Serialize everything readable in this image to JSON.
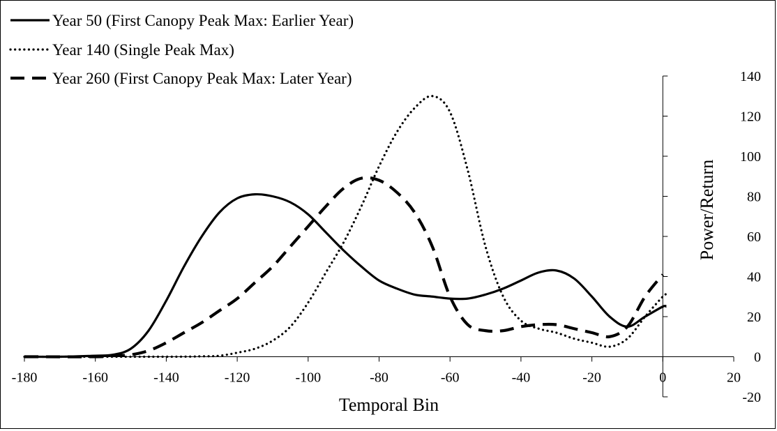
{
  "chart_data": {
    "type": "line",
    "title": "",
    "xlabel": "Temporal Bin",
    "ylabel": "Power/Return",
    "xlim": [
      -180,
      20
    ],
    "ylim": [
      -20,
      140
    ],
    "xticks": [
      -180,
      -160,
      -140,
      -120,
      -100,
      -80,
      -60,
      -40,
      -20,
      0,
      20
    ],
    "yticks": [
      -20,
      0,
      20,
      40,
      60,
      80,
      100,
      120,
      140
    ],
    "legend_position": "top-left",
    "grid": false,
    "series": [
      {
        "name": "Year 50 (First Canopy Peak Max: Earlier Year)",
        "style": "solid",
        "color": "#000000",
        "x": [
          -180,
          -170,
          -160,
          -155,
          -150,
          -145,
          -140,
          -135,
          -130,
          -125,
          -120,
          -115,
          -110,
          -105,
          -100,
          -95,
          -90,
          -85,
          -80,
          -75,
          -70,
          -65,
          -60,
          -55,
          -50,
          -45,
          -40,
          -35,
          -30,
          -25,
          -20,
          -15,
          -10,
          -5,
          0,
          1
        ],
        "y": [
          0,
          0,
          0.5,
          1,
          4,
          13,
          28,
          45,
          60,
          72,
          79,
          81,
          80,
          77,
          71,
          62,
          53,
          45,
          38,
          34,
          31,
          30,
          29,
          29,
          31,
          34,
          38,
          42,
          43,
          39,
          30,
          20,
          15,
          20,
          25,
          25
        ]
      },
      {
        "name": "Year 140 (Single Peak Max)",
        "style": "dotted",
        "color": "#000000",
        "x": [
          -180,
          -140,
          -130,
          -125,
          -120,
          -115,
          -110,
          -105,
          -100,
          -95,
          -90,
          -85,
          -80,
          -75,
          -70,
          -65,
          -60,
          -55,
          -50,
          -45,
          -40,
          -35,
          -30,
          -25,
          -20,
          -15,
          -10,
          -5,
          0,
          1
        ],
        "y": [
          0,
          0,
          0.2,
          0.5,
          2,
          4,
          8,
          15,
          27,
          42,
          57,
          75,
          95,
          112,
          124,
          130,
          122,
          93,
          55,
          30,
          18,
          14,
          12,
          9,
          7,
          5,
          9,
          20,
          30,
          31
        ]
      },
      {
        "name": "Year 260 (First Canopy Peak Max: Later Year)",
        "style": "dashed",
        "color": "#000000",
        "x": [
          -180,
          -160,
          -155,
          -150,
          -145,
          -140,
          -135,
          -130,
          -125,
          -120,
          -115,
          -110,
          -105,
          -100,
          -95,
          -90,
          -85,
          -80,
          -75,
          -70,
          -65,
          -60,
          -55,
          -50,
          -45,
          -40,
          -35,
          -30,
          -25,
          -20,
          -15,
          -10,
          -5,
          0
        ],
        "y": [
          0,
          0,
          0.5,
          1,
          3,
          7,
          12,
          17,
          23,
          29,
          37,
          45,
          55,
          65,
          75,
          84,
          89,
          88,
          82,
          72,
          55,
          30,
          16,
          13,
          13,
          15,
          16,
          16,
          14,
          12,
          10,
          15,
          30,
          41
        ]
      }
    ]
  }
}
